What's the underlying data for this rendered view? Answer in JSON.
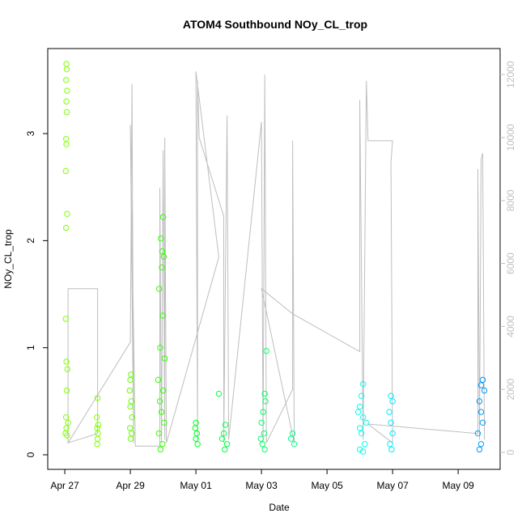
{
  "chart_data": {
    "type": "scatter",
    "title": "ATOM4 Southbound NOy_CL_trop",
    "x_label": "Date",
    "y_label": "NOy_CL_trop",
    "xlim": [
      -0.52,
      13.28
    ],
    "xticks": [
      {
        "value": 0,
        "label": "Apr 27"
      },
      {
        "value": 2,
        "label": "Apr 29"
      },
      {
        "value": 4,
        "label": "May 01"
      },
      {
        "value": 6,
        "label": "May 03"
      },
      {
        "value": 8,
        "label": "May 05"
      },
      {
        "value": 10,
        "label": "May 07"
      },
      {
        "value": 12,
        "label": "May 09"
      }
    ],
    "ylim": [
      -0.136,
      3.794
    ],
    "yticks": [
      0,
      1,
      2,
      3
    ],
    "y2lim": [
      -540,
      12827
    ],
    "y2ticks": [
      0,
      2000,
      4000,
      6000,
      8000,
      10000,
      12000
    ],
    "series": [
      {
        "color": "#80ff00",
        "x": [
          0.05,
          0.06,
          0.04,
          0.07,
          0.05,
          0.06,
          0.04,
          0.05,
          0.03,
          0.07,
          0.04,
          0.03,
          0.05,
          0.08,
          0.06,
          0.04,
          0.1,
          0.05,
          0.02,
          0.07
        ],
        "values": [
          3.65,
          3.6,
          3.5,
          3.4,
          3.3,
          3.2,
          2.95,
          2.9,
          2.65,
          2.25,
          2.12,
          1.27,
          0.87,
          0.8,
          0.6,
          0.35,
          0.3,
          0.25,
          0.2,
          0.18
        ]
      },
      {
        "color": "#80ff00",
        "x": [
          1.0,
          0.98,
          1.02,
          0.99,
          1.01,
          1.0,
          0.99
        ],
        "values": [
          0.53,
          0.35,
          0.28,
          0.25,
          0.2,
          0.15,
          0.1
        ]
      },
      {
        "color": "#66ff00",
        "x": [
          2.02,
          2.0,
          1.98,
          2.03,
          2.0,
          2.05,
          1.99,
          2.04,
          2.01
        ],
        "values": [
          0.75,
          0.7,
          0.6,
          0.5,
          0.45,
          0.35,
          0.25,
          0.2,
          0.15
        ]
      },
      {
        "color": "#33ff00",
        "x": [
          3.0,
          2.93,
          2.97,
          3.02,
          2.96,
          2.88,
          2.99,
          2.91,
          3.05,
          2.85,
          3.0,
          2.9,
          2.95,
          3.03,
          2.87,
          2.98,
          2.92
        ],
        "values": [
          2.22,
          2.02,
          1.9,
          1.85,
          1.75,
          1.55,
          1.3,
          1.0,
          0.9,
          0.7,
          0.6,
          0.5,
          0.4,
          0.3,
          0.2,
          0.1,
          0.05
        ]
      },
      {
        "color": "#00ff22",
        "x": [
          4.0,
          3.98,
          4.03,
          4.0,
          4.05
        ],
        "values": [
          0.3,
          0.25,
          0.2,
          0.15,
          0.1
        ]
      },
      {
        "color": "#00ff44",
        "x": [
          4.7,
          4.9,
          4.85,
          4.8,
          4.95,
          4.88
        ],
        "values": [
          0.57,
          0.28,
          0.2,
          0.15,
          0.1,
          0.05
        ]
      },
      {
        "color": "#00ff66",
        "x": [
          6.15,
          6.1,
          6.12,
          6.05,
          6.0,
          6.08,
          5.98,
          6.03,
          6.1
        ],
        "values": [
          0.97,
          0.57,
          0.5,
          0.4,
          0.3,
          0.2,
          0.15,
          0.1,
          0.05
        ]
      },
      {
        "color": "#00ff88",
        "x": [
          6.95,
          6.9,
          7.0
        ],
        "values": [
          0.2,
          0.15,
          0.1
        ]
      },
      {
        "color": "#00ffee",
        "x": [
          9.1,
          9.05,
          9.0,
          8.95,
          9.1,
          9.2,
          9.0,
          9.05,
          9.15,
          9.0,
          9.1
        ],
        "values": [
          0.66,
          0.55,
          0.45,
          0.4,
          0.35,
          0.3,
          0.25,
          0.2,
          0.1,
          0.05,
          0.03
        ]
      },
      {
        "color": "#00eeff",
        "x": [
          9.95,
          10.0,
          9.9,
          9.95,
          10.0,
          9.92,
          9.97
        ],
        "values": [
          0.55,
          0.5,
          0.4,
          0.3,
          0.2,
          0.1,
          0.05
        ]
      },
      {
        "color": "#0099ff",
        "x": [
          12.75,
          12.7,
          12.8,
          12.65,
          12.7,
          12.75,
          12.6,
          12.7,
          12.65
        ],
        "values": [
          0.7,
          0.65,
          0.6,
          0.5,
          0.4,
          0.3,
          0.2,
          0.1,
          0.05
        ]
      }
    ],
    "line_series": {
      "axis": "y2",
      "color": "#bebebe",
      "x": [
        0.1,
        0.1,
        1.0,
        1.0,
        0.1,
        2.0,
        2.05,
        2.1,
        2.0,
        2.15,
        2.9,
        2.9,
        2.95,
        3.0,
        3.05,
        3.05,
        3.1,
        4.7,
        4.0,
        4.05,
        4.05,
        4.1,
        4.85,
        4.85,
        4.95,
        5.0,
        6.0,
        6.05,
        6.1,
        6.15,
        6.95,
        6.95,
        7.0,
        6.0,
        6.95,
        9.0,
        9.0,
        9.1,
        9.2,
        9.25,
        10.0,
        9.95,
        10.0,
        9.25,
        12.6,
        12.6,
        12.65,
        12.7,
        12.75,
        12.8
      ],
      "values": [
        300,
        5200,
        5200,
        600,
        300,
        3500,
        11700,
        300,
        10400,
        200,
        200,
        8400,
        300,
        9600,
        400,
        10000,
        300,
        6200,
        12100,
        400,
        11800,
        10000,
        7500,
        300,
        10700,
        400,
        10500,
        300,
        12000,
        300,
        2000,
        9900,
        300,
        5200,
        4400,
        3200,
        11200,
        400,
        11800,
        9900,
        9900,
        9200,
        300,
        900,
        600,
        9000,
        400,
        9300,
        9500,
        400
      ]
    }
  }
}
